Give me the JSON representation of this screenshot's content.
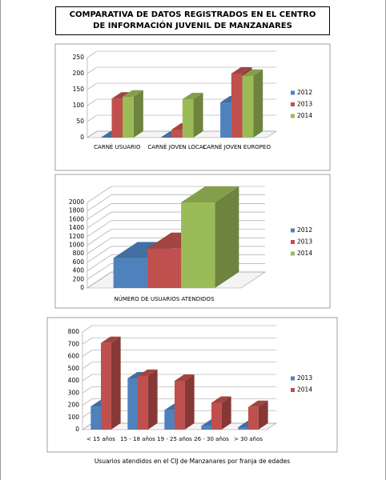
{
  "title": "COMPARATIVA DE DATOS REGISTRADOS EN EL CENTRO DE INFORMACIÓN JUVENIL DE MANZANARES",
  "chart_data": [
    {
      "type": "bar",
      "categories": [
        "CARNÉ USUARIO",
        "CARNÉ JOVEN LOCAL",
        "CARNÉ JOVEN EUROPEO"
      ],
      "series": [
        {
          "name": "2012",
          "color": "#4f81bd",
          "values": [
            0,
            0,
            110
          ]
        },
        {
          "name": "2013",
          "color": "#c0504d",
          "values": [
            122,
            25,
            200
          ]
        },
        {
          "name": "2014",
          "color": "#9bbb59",
          "values": [
            128,
            120,
            193
          ]
        }
      ],
      "ylim": [
        0,
        250
      ],
      "yticks": [
        0,
        50,
        100,
        150,
        200,
        250
      ],
      "grid": true,
      "legend": "right"
    },
    {
      "type": "bar",
      "categories": [
        "NÚMERO DE USUARIOS ATENDIDOS"
      ],
      "series": [
        {
          "name": "2012",
          "color": "#4f81bd",
          "values": [
            700
          ]
        },
        {
          "name": "2013",
          "color": "#c0504d",
          "values": [
            920
          ]
        },
        {
          "name": "2014",
          "color": "#9bbb59",
          "values": [
            2000
          ]
        }
      ],
      "ylim": [
        0,
        2000
      ],
      "yticks": [
        0,
        200,
        400,
        600,
        800,
        1000,
        1200,
        1400,
        1600,
        1800,
        2000
      ],
      "grid": true,
      "legend": "right"
    },
    {
      "type": "bar",
      "categories": [
        "< 15 años",
        "15 - 18 años",
        "19 - 25 años",
        "26 - 30 años",
        "> 30 años"
      ],
      "series": [
        {
          "name": "2013",
          "color": "#4f81bd",
          "values": [
            190,
            420,
            160,
            30,
            20
          ]
        },
        {
          "name": "2014",
          "color": "#c0504d",
          "values": [
            710,
            440,
            400,
            220,
            185
          ]
        }
      ],
      "ylim": [
        0,
        800
      ],
      "yticks": [
        0,
        100,
        200,
        300,
        400,
        500,
        600,
        700,
        800
      ],
      "grid": true,
      "legend": "right",
      "caption": "Usuarios atendidos en el CIJ de Manzanares por franja de edades"
    }
  ]
}
